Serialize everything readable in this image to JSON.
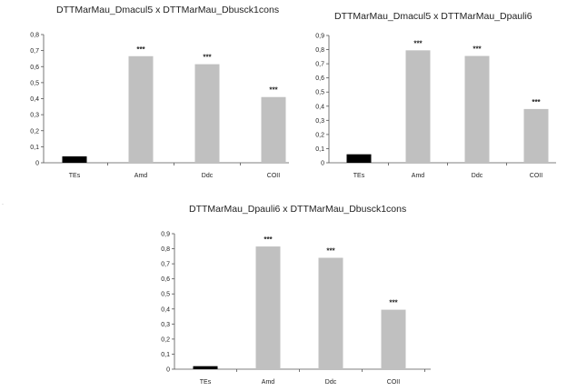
{
  "chart_data": [
    {
      "type": "bar",
      "title": "DTTMarMau_Dmacul5 x DTTMarMau_Dbusck1cons",
      "categories": [
        "TEs",
        "Amd",
        "Ddc",
        "COII"
      ],
      "values": [
        0.04,
        0.665,
        0.615,
        0.41
      ],
      "bar_colors": [
        "#000000",
        "#c0c0c0",
        "#c0c0c0",
        "#c0c0c0"
      ],
      "annotations": [
        "",
        "***",
        "***",
        "***"
      ],
      "ylim": [
        0,
        0.8
      ],
      "yticks": [
        "0",
        "0,1",
        "0,2",
        "0,3",
        "0,4",
        "0,5",
        "0,6",
        "0,7",
        "0,8"
      ],
      "xlabel": "",
      "ylabel": "",
      "grid": false
    },
    {
      "type": "bar",
      "title": "DTTMarMau_Dmacul5 x DTTMarMau_Dpauli6",
      "categories": [
        "TEs",
        "Amd",
        "Ddc",
        "COII"
      ],
      "values": [
        0.06,
        0.795,
        0.755,
        0.38
      ],
      "bar_colors": [
        "#000000",
        "#c0c0c0",
        "#c0c0c0",
        "#c0c0c0"
      ],
      "annotations": [
        "",
        "***",
        "***",
        "***"
      ],
      "ylim": [
        0,
        0.9
      ],
      "yticks": [
        "0",
        "0,1",
        "0,2",
        "0,3",
        "0,4",
        "0,5",
        "0,6",
        "0,7",
        "0,8",
        "0,9"
      ],
      "xlabel": "",
      "ylabel": "",
      "grid": false
    },
    {
      "type": "bar",
      "title": "DTTMarMau_Dpauli6 x DTTMarMau_Dbusck1cons",
      "categories": [
        "TEs",
        "Amd",
        "Ddc",
        "COII"
      ],
      "values": [
        0.02,
        0.815,
        0.74,
        0.395
      ],
      "bar_colors": [
        "#000000",
        "#c0c0c0",
        "#c0c0c0",
        "#c0c0c0"
      ],
      "annotations": [
        "",
        "***",
        "***",
        "***"
      ],
      "ylim": [
        0,
        0.9
      ],
      "yticks": [
        "0",
        "0,1",
        "0,2",
        "0,3",
        "0,4",
        "0,5",
        "0,6",
        "0,7",
        "0,8",
        "0,9"
      ],
      "xlabel": "",
      "ylabel": "",
      "grid": false
    }
  ]
}
